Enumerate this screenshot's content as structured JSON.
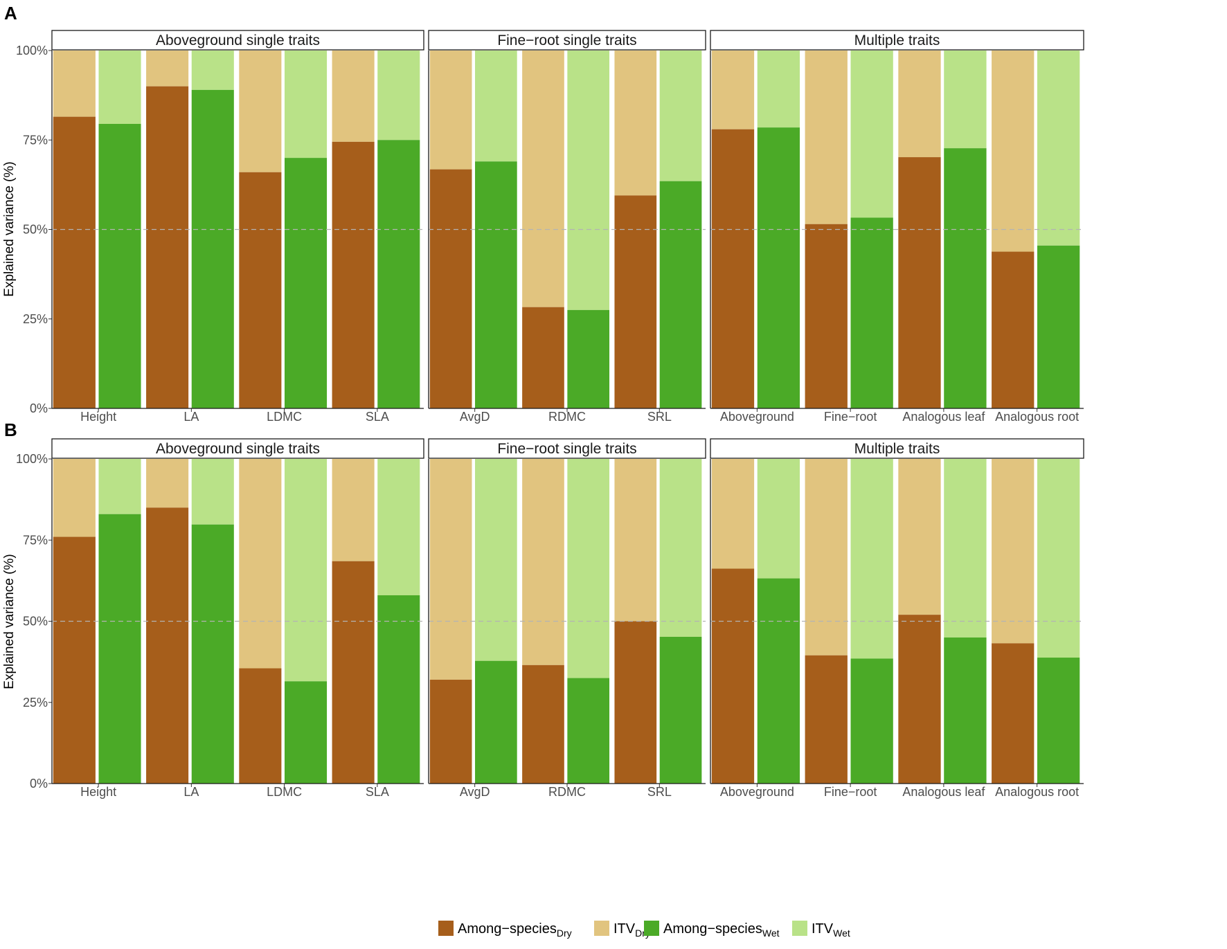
{
  "colors": {
    "among_dry": "#A65E1B",
    "itv_dry": "#E1C47F",
    "among_wet": "#4BAA27",
    "itv_wet": "#B9E288",
    "reference_line": "#b3b3b3"
  },
  "chart_data": [
    {
      "type": "bar",
      "stacked": true,
      "panel_label": "A",
      "ylabel": "Explained variance (%)",
      "ylim": [
        0,
        100
      ],
      "yticks": [
        "0%",
        "25%",
        "50%",
        "75%",
        "100%"
      ],
      "reference_line": 50,
      "facets": [
        {
          "title": "Aboveground single traits",
          "categories": [
            "Height",
            "LA",
            "LDMC",
            "SLA"
          ],
          "among_dry": [
            81.5,
            90,
            66,
            74.5
          ],
          "among_wet": [
            79.5,
            89,
            70,
            75
          ]
        },
        {
          "title": "Fine−root single traits",
          "categories": [
            "AvgD",
            "RDMC",
            "SRL"
          ],
          "among_dry": [
            66.8,
            28.3,
            59.5
          ],
          "among_wet": [
            69,
            27.5,
            63.5
          ]
        },
        {
          "title": "Multiple traits",
          "categories": [
            "Aboveground",
            "Fine−root",
            "Analogous leaf",
            "Analogous root"
          ],
          "among_dry": [
            78,
            51.5,
            70.2,
            43.8
          ],
          "among_wet": [
            78.5,
            53.3,
            72.7,
            45.5
          ]
        }
      ]
    },
    {
      "type": "bar",
      "stacked": true,
      "panel_label": "B",
      "ylabel": "Explained variance (%)",
      "ylim": [
        0,
        100
      ],
      "yticks": [
        "0%",
        "25%",
        "50%",
        "75%",
        "100%"
      ],
      "reference_line": 50,
      "facets": [
        {
          "title": "Aboveground single traits",
          "categories": [
            "Height",
            "LA",
            "LDMC",
            "SLA"
          ],
          "among_dry": [
            76,
            85,
            35.5,
            68.5
          ],
          "among_wet": [
            83,
            79.8,
            31.5,
            58
          ]
        },
        {
          "title": "Fine−root single traits",
          "categories": [
            "AvgD",
            "RDMC",
            "SRL"
          ],
          "among_dry": [
            32,
            36.5,
            50
          ],
          "among_wet": [
            37.8,
            32.5,
            45.2
          ]
        },
        {
          "title": "Multiple traits",
          "categories": [
            "Aboveground",
            "Fine−root",
            "Analogous leaf",
            "Analogous root"
          ],
          "among_dry": [
            66.2,
            39.5,
            52,
            43.2
          ],
          "among_wet": [
            63.2,
            38.5,
            45,
            38.8
          ]
        }
      ]
    }
  ],
  "legend": [
    {
      "key": "among_dry",
      "label": "Among−species",
      "sub": "Dry"
    },
    {
      "key": "itv_dry",
      "label": "ITV",
      "sub": "Dry"
    },
    {
      "key": "among_wet",
      "label": "Among−species",
      "sub": "Wet"
    },
    {
      "key": "itv_wet",
      "label": "ITV",
      "sub": "Wet"
    }
  ]
}
